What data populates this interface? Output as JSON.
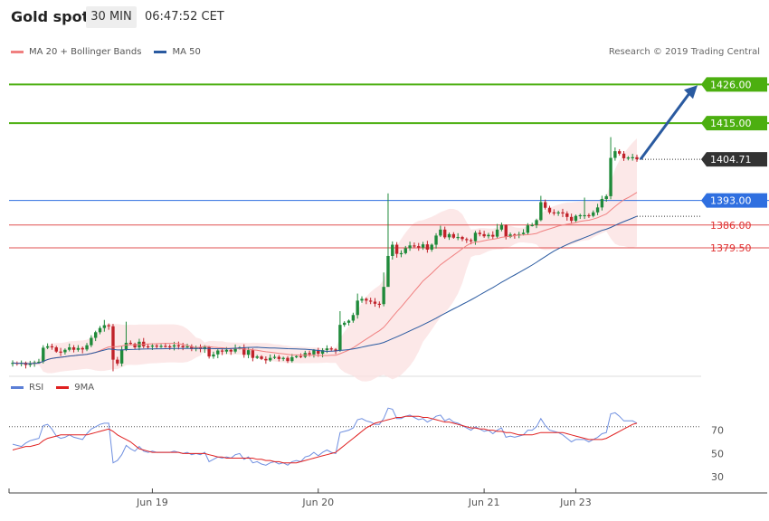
{
  "header": {
    "title": "Gold spot",
    "timeframe": "30 MIN",
    "time": "06:47:52 CET"
  },
  "legend_main": {
    "items": [
      {
        "label": "MA 20 + Bollinger Bands",
        "color": "#f08080"
      },
      {
        "label": "MA 50",
        "color": "#2a5aa0"
      }
    ],
    "credit": "Research © 2019 Trading Central"
  },
  "legend_rsi": {
    "items": [
      {
        "label": "RSI",
        "color": "#5b7fd6"
      },
      {
        "label": "9MA",
        "color": "#e02020"
      }
    ]
  },
  "chart_data": [
    {
      "type": "candlestick",
      "name": "price",
      "ylim": [
        1344.0,
        1432.0
      ],
      "last_price": "1404.71",
      "levels": [
        {
          "value": 1426.0,
          "label": "1426.00",
          "kind": "resistance",
          "color": "#4caf10"
        },
        {
          "value": 1415.0,
          "label": "1415.00",
          "kind": "resistance",
          "color": "#4caf10"
        },
        {
          "value": 1393.0,
          "label": "1393.00",
          "kind": "pivot",
          "color": "#2f6fe0"
        },
        {
          "value": 1386.0,
          "label": "1386.00",
          "kind": "support",
          "color": "#e05050"
        },
        {
          "value": 1379.5,
          "label": "1379.50",
          "kind": "support",
          "color": "#e05050"
        }
      ],
      "x_ticks": [
        "Jun 19",
        "Jun 20",
        "Jun 21",
        "Jun 23"
      ],
      "close": [
        1346.8,
        1346.5,
        1346.8,
        1346.2,
        1346.6,
        1346.9,
        1347.1,
        1351.1,
        1351.5,
        1351.2,
        1350.0,
        1349.8,
        1350.5,
        1351.2,
        1350.5,
        1351.0,
        1350.6,
        1351.8,
        1353.9,
        1355.5,
        1356.7,
        1357.5,
        1357.2,
        1347.7,
        1346.6,
        1350.6,
        1352.5,
        1352.2,
        1351.2,
        1352.8,
        1351.5,
        1351.4,
        1351.7,
        1351.5,
        1351.6,
        1351.5,
        1351.4,
        1351.8,
        1351.6,
        1351.2,
        1351.5,
        1350.7,
        1351.2,
        1350.7,
        1351.3,
        1348.6,
        1349.2,
        1350.3,
        1350.0,
        1350.5,
        1350.0,
        1351.0,
        1351.2,
        1349.1,
        1350.4,
        1348.2,
        1348.6,
        1347.9,
        1347.5,
        1348.2,
        1348.5,
        1347.9,
        1348.2,
        1347.3,
        1348.4,
        1348.7,
        1348.5,
        1349.6,
        1349.2,
        1350.4,
        1349.4,
        1350.4,
        1350.9,
        1350.6,
        1350.3,
        1357.6,
        1358.2,
        1358.8,
        1360.4,
        1364.5,
        1365.0,
        1364.5,
        1364.2,
        1363.6,
        1363.5,
        1368.4,
        1377.2,
        1380.4,
        1377.8,
        1378.0,
        1379.4,
        1380.2,
        1380.0,
        1379.6,
        1380.5,
        1379.0,
        1380.4,
        1383.0,
        1384.7,
        1382.5,
        1383.4,
        1382.4,
        1382.6,
        1382.0,
        1381.7,
        1381.4,
        1383.8,
        1383.4,
        1382.8,
        1383.2,
        1382.7,
        1384.7,
        1386.0,
        1382.6,
        1383.3,
        1383.0,
        1383.4,
        1383.8,
        1385.9,
        1386.0,
        1387.4,
        1392.5,
        1390.9,
        1389.6,
        1389.4,
        1389.6,
        1389.3,
        1388.3,
        1387.2,
        1388.6,
        1388.8,
        1388.8,
        1388.6,
        1389.6,
        1391.0,
        1393.4,
        1394.2,
        1405.1,
        1407.0,
        1406.3,
        1405.0,
        1405.2,
        1405.3,
        1404.7
      ],
      "rsi": {
        "ylim": [
          20,
          100
        ],
        "ticks": [
          30,
          50,
          70
        ],
        "overbought": 73,
        "rsi": [
          58,
          57,
          56,
          59,
          61,
          62,
          63,
          74,
          75,
          71,
          65,
          63,
          64,
          66,
          64,
          63,
          62,
          67,
          71,
          73,
          75,
          76,
          76,
          42,
          44,
          49,
          57,
          54,
          52,
          56,
          52,
          51,
          52,
          51,
          51,
          51,
          51,
          52,
          51,
          50,
          51,
          49,
          50,
          49,
          51,
          43,
          45,
          47,
          46,
          47,
          46,
          49,
          50,
          45,
          47,
          42,
          43,
          41,
          40,
          42,
          43,
          41,
          42,
          40,
          43,
          44,
          43,
          47,
          48,
          51,
          48,
          51,
          53,
          51,
          50,
          68,
          69,
          70,
          72,
          79,
          80,
          78,
          77,
          75,
          75,
          80,
          89,
          88,
          80,
          80,
          82,
          83,
          81,
          79,
          80,
          77,
          79,
          82,
          83,
          78,
          80,
          77,
          76,
          74,
          72,
          70,
          73,
          71,
          69,
          70,
          67,
          70,
          72,
          64,
          65,
          64,
          65,
          66,
          70,
          70,
          73,
          80,
          74,
          70,
          69,
          68,
          66,
          63,
          60,
          62,
          62,
          62,
          60,
          62,
          64,
          67,
          68,
          84,
          85,
          82,
          78,
          78,
          78,
          76
        ],
        "ma9": [
          53,
          54,
          55,
          56,
          56,
          57,
          58,
          61,
          63,
          64,
          65,
          66,
          66,
          66,
          66,
          66,
          66,
          66,
          67,
          68,
          69,
          70,
          71,
          69,
          66,
          64,
          62,
          60,
          57,
          54,
          53,
          52,
          51,
          51,
          51,
          51,
          51,
          51,
          51,
          50,
          50,
          50,
          50,
          50,
          50,
          49,
          48,
          47,
          47,
          46,
          46,
          46,
          46,
          46,
          46,
          46,
          45,
          45,
          44,
          44,
          43,
          43,
          42,
          42,
          42,
          42,
          43,
          44,
          45,
          46,
          47,
          48,
          49,
          50,
          51,
          54,
          57,
          60,
          63,
          66,
          69,
          72,
          74,
          76,
          77,
          78,
          79,
          80,
          81,
          81,
          82,
          82,
          82,
          82,
          81,
          81,
          80,
          79,
          78,
          77,
          77,
          76,
          75,
          74,
          73,
          72,
          72,
          71,
          71,
          70,
          70,
          69,
          69,
          68,
          68,
          67,
          66,
          66,
          66,
          66,
          67,
          68,
          68,
          68,
          68,
          68,
          68,
          67,
          66,
          65,
          64,
          63,
          62,
          62,
          62,
          62,
          63,
          65,
          67,
          69,
          71,
          73,
          75,
          76
        ]
      }
    }
  ]
}
